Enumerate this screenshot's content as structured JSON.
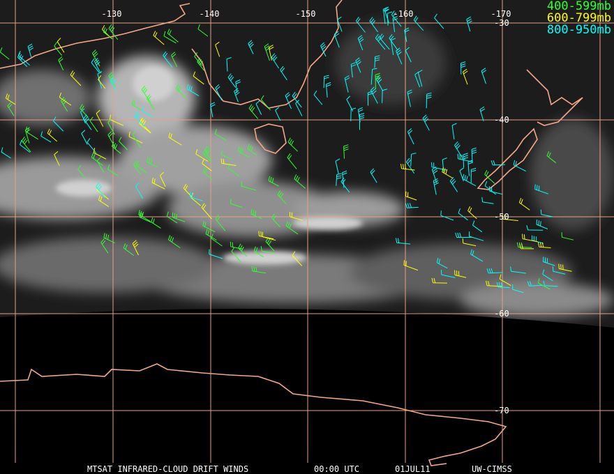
{
  "map": {
    "longitude_labels": [
      "-130",
      "-140",
      "-150",
      "-160",
      "-170"
    ],
    "latitude_labels": [
      "-30",
      "-40",
      "-50",
      "-60",
      "-70"
    ],
    "legend": [
      "400-599mb",
      "600-799mb",
      "800-950mb"
    ],
    "footer": [
      "MTSAT INFRARED-CLOUD DRIFT WINDS",
      "00:00 UTC",
      "01JUL11",
      "UW-CIMSS"
    ]
  }
}
